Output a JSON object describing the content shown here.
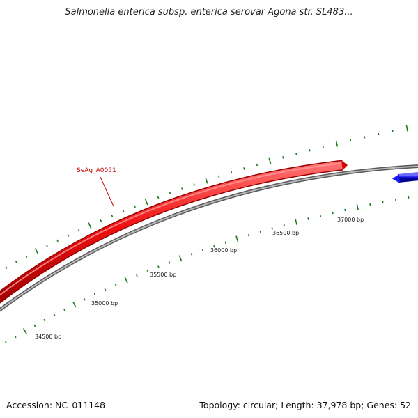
{
  "title": "Salmonella enterica subsp. enterica serovar Agona str. SL483...",
  "footer": {
    "accession": "Accession: NC_011148",
    "topology": "Topology: circular; Length: 37,978 bp; Genes: 52"
  },
  "map": {
    "backbone_color": "#8a8a8a",
    "tick_color": "#1a7a1a",
    "label_color": "#cc0000",
    "position_labels": [
      "34500 bp",
      "35000 bp",
      "35500 bp",
      "36000 bp",
      "36500 bp",
      "37000 bp"
    ],
    "features": [
      {
        "name": "SeAg_A0051",
        "strand": "forward",
        "color": "#ee1111",
        "labeled": true
      },
      {
        "name": "",
        "strand": "reverse",
        "color": "#1a1aee",
        "labeled": false
      }
    ]
  }
}
